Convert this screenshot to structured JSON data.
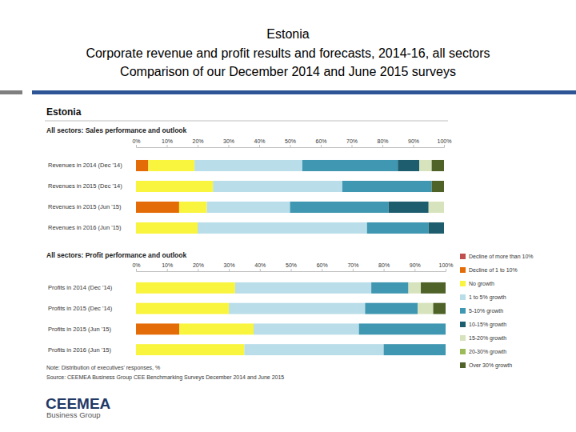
{
  "page": {
    "title": [
      "Estonia",
      "Corporate revenue and profit results and forecasts, 2014-16, all sectors",
      "Comparison of our December 2014 and June 2015 surveys"
    ],
    "panel_title": "Estonia",
    "note": "Note: Distribution of executives' responses, %",
    "source": "Source: CEEMEA Business Group CEE Benchmarking Surveys December 2014 and June 2015",
    "logo": [
      "CEEMEA",
      "Business Group"
    ]
  },
  "chart_data": [
    {
      "type": "bar",
      "orientation": "horizontal",
      "stacked": true,
      "grid": false,
      "title": "All sectors: Sales performance and outlook",
      "categories": [
        "Revenues in 2014 (Dec '14)",
        "Revenues in 2015 (Dec '14)",
        "Revenues in 2015 (Jun '15)",
        "Revenues in 2016 (Jun '15)"
      ],
      "xlim": [
        0,
        100
      ],
      "xticks": [
        {
          "value": 0,
          "label": "0%"
        },
        {
          "value": 10,
          "label": "10%"
        },
        {
          "value": 20,
          "label": "20%"
        },
        {
          "value": 30,
          "label": "30%"
        },
        {
          "value": 40,
          "label": "40%"
        },
        {
          "value": 50,
          "label": "50%"
        },
        {
          "value": 60,
          "label": "60%"
        },
        {
          "value": 70,
          "label": "70%"
        },
        {
          "value": 80,
          "label": "80%"
        },
        {
          "value": 90,
          "label": "90%"
        },
        {
          "value": 100,
          "label": "100%"
        }
      ],
      "series": [
        {
          "color": "#e36c09",
          "values": [
            4,
            0,
            14,
            0
          ]
        },
        {
          "color": "#f9f43d",
          "values": [
            15,
            25,
            9,
            20
          ]
        },
        {
          "color": "#b9dde9",
          "values": [
            35,
            42,
            27,
            55
          ]
        },
        {
          "color": "#3f97b1",
          "values": [
            31,
            29,
            32,
            20
          ]
        },
        {
          "color": "#1d5d6e",
          "values": [
            7,
            0,
            13,
            5
          ]
        },
        {
          "color": "#d6e3bc",
          "values": [
            4,
            0,
            5,
            0
          ]
        },
        {
          "color": "#4f6228",
          "values": [
            4,
            4,
            0,
            0
          ]
        }
      ]
    },
    {
      "type": "bar",
      "orientation": "horizontal",
      "stacked": true,
      "grid": false,
      "legend": "right",
      "title": "All sectors: Profit performance and outlook",
      "categories": [
        "Profits in 2014 (Dec '14)",
        "Profits in 2015 (Dec '14)",
        "Profits in 2015 (Jun '15)",
        "Profits in 2016 (Jun '15)"
      ],
      "xlim": [
        0,
        100
      ],
      "xticks": [
        {
          "value": 0,
          "label": "0%"
        },
        {
          "value": 10,
          "label": "10%"
        },
        {
          "value": 20,
          "label": "20%"
        },
        {
          "value": 30,
          "label": "30%"
        },
        {
          "value": 40,
          "label": "40%"
        },
        {
          "value": 50,
          "label": "50%"
        },
        {
          "value": 60,
          "label": "60%"
        },
        {
          "value": 70,
          "label": "70%"
        },
        {
          "value": 80,
          "label": "80%"
        },
        {
          "value": 90,
          "label": "90%"
        },
        {
          "value": 100,
          "label": "100%"
        }
      ],
      "series": [
        {
          "name": "Decline of more than 10%",
          "color": "#c0504d",
          "values": [
            0,
            0,
            0,
            0
          ]
        },
        {
          "name": "Decline of 1 to 10%",
          "color": "#e36c09",
          "values": [
            0,
            0,
            14,
            0
          ]
        },
        {
          "name": "No growth",
          "color": "#f9f43d",
          "values": [
            32,
            30,
            24,
            35
          ]
        },
        {
          "name": "1 to 5% growth",
          "color": "#b9dde9",
          "values": [
            44,
            44,
            34,
            45
          ]
        },
        {
          "name": "5-10% growth",
          "color": "#3f97b1",
          "values": [
            12,
            17,
            28,
            20
          ]
        },
        {
          "name": "10-15% growth",
          "color": "#1d5d6e",
          "values": [
            0,
            0,
            0,
            0
          ]
        },
        {
          "name": "15-20% growth",
          "color": "#d6e3bc",
          "values": [
            4,
            5,
            0,
            0
          ]
        },
        {
          "name": "20-30% growth",
          "color": "#9bbb59",
          "values": [
            0,
            0,
            0,
            0
          ]
        },
        {
          "name": "Over 30% growth",
          "color": "#4f6228",
          "values": [
            8,
            4,
            0,
            0
          ]
        }
      ]
    }
  ]
}
